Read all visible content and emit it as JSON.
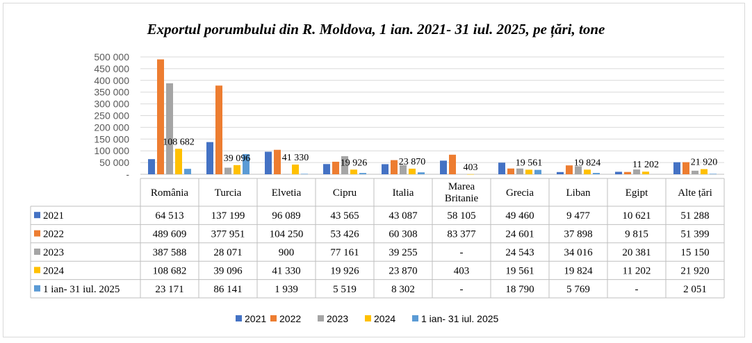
{
  "chart_data": {
    "type": "bar",
    "title": "Exportul porumbului din R. Moldova, 1 ian. 2021- 31 iul. 2025, pe țări, tone",
    "categories": [
      "România",
      "Turcia",
      "Elvetia",
      "Cipru",
      "Italia",
      "Marea Britanie",
      "Grecia",
      "Liban",
      "Egipt",
      "Alte țări"
    ],
    "category_lines": [
      [
        "România"
      ],
      [
        "Turcia"
      ],
      [
        "Elvetia"
      ],
      [
        "Cipru"
      ],
      [
        "Italia"
      ],
      [
        "Marea",
        "Britanie"
      ],
      [
        "Grecia"
      ],
      [
        "Liban"
      ],
      [
        "Egipt"
      ],
      [
        "Alte țări"
      ]
    ],
    "series": [
      {
        "name": "2021",
        "color": "#4472C4",
        "values": [
          64513,
          137199,
          96089,
          43565,
          43087,
          58105,
          49460,
          9477,
          10621,
          51288
        ]
      },
      {
        "name": "2022",
        "color": "#ED7D31",
        "values": [
          489609,
          377951,
          104250,
          53426,
          60308,
          83377,
          24601,
          37898,
          9815,
          51399
        ]
      },
      {
        "name": "2023",
        "color": "#A5A5A5",
        "values": [
          387588,
          28071,
          900,
          77161,
          39255,
          null,
          24543,
          34016,
          20381,
          15150
        ]
      },
      {
        "name": "2024",
        "color": "#FFC000",
        "values": [
          108682,
          39096,
          41330,
          19926,
          23870,
          403,
          19561,
          19824,
          11202,
          21920
        ]
      },
      {
        "name": "1 ian- 31 iul. 2025",
        "color": "#5B9BD5",
        "values": [
          23171,
          86141,
          1939,
          5519,
          8302,
          null,
          18790,
          5769,
          null,
          2051
        ]
      }
    ],
    "table": {
      "rows": [
        [
          "64 513",
          "137 199",
          "96 089",
          "43 565",
          "43 087",
          "58 105",
          "49 460",
          "9 477",
          "10 621",
          "51 288"
        ],
        [
          "489 609",
          "377 951",
          "104 250",
          "53 426",
          "60 308",
          "83 377",
          "24 601",
          "37 898",
          "9 815",
          "51 399"
        ],
        [
          "387 588",
          "28 071",
          "900",
          "77 161",
          "39 255",
          "-",
          "24 543",
          "34 016",
          "20 381",
          "15 150"
        ],
        [
          "108 682",
          "39 096",
          "41 330",
          "19 926",
          "23 870",
          "403",
          "19 561",
          "19 824",
          "11 202",
          "21 920"
        ],
        [
          "23 171",
          "86 141",
          "1 939",
          "5 519",
          "8 302",
          "-",
          "18 790",
          "5 769",
          "-",
          "2 051"
        ]
      ]
    },
    "data_labels_series": "2024",
    "data_labels": [
      "108 682",
      "39 096",
      "41 330",
      "19 926",
      "23 870",
      "403",
      "19 561",
      "19 824",
      "11 202",
      "21 920"
    ],
    "ylim": [
      0,
      500000
    ],
    "yticks": [
      0,
      50000,
      100000,
      150000,
      200000,
      250000,
      300000,
      350000,
      400000,
      450000,
      500000
    ],
    "ytick_labels": [
      "-",
      "50 000",
      "100 000",
      "150 000",
      "200 000",
      "250 000",
      "300 000",
      "350 000",
      "400 000",
      "450 000",
      "500 000"
    ],
    "grid": true,
    "legend_position": "bottom"
  }
}
